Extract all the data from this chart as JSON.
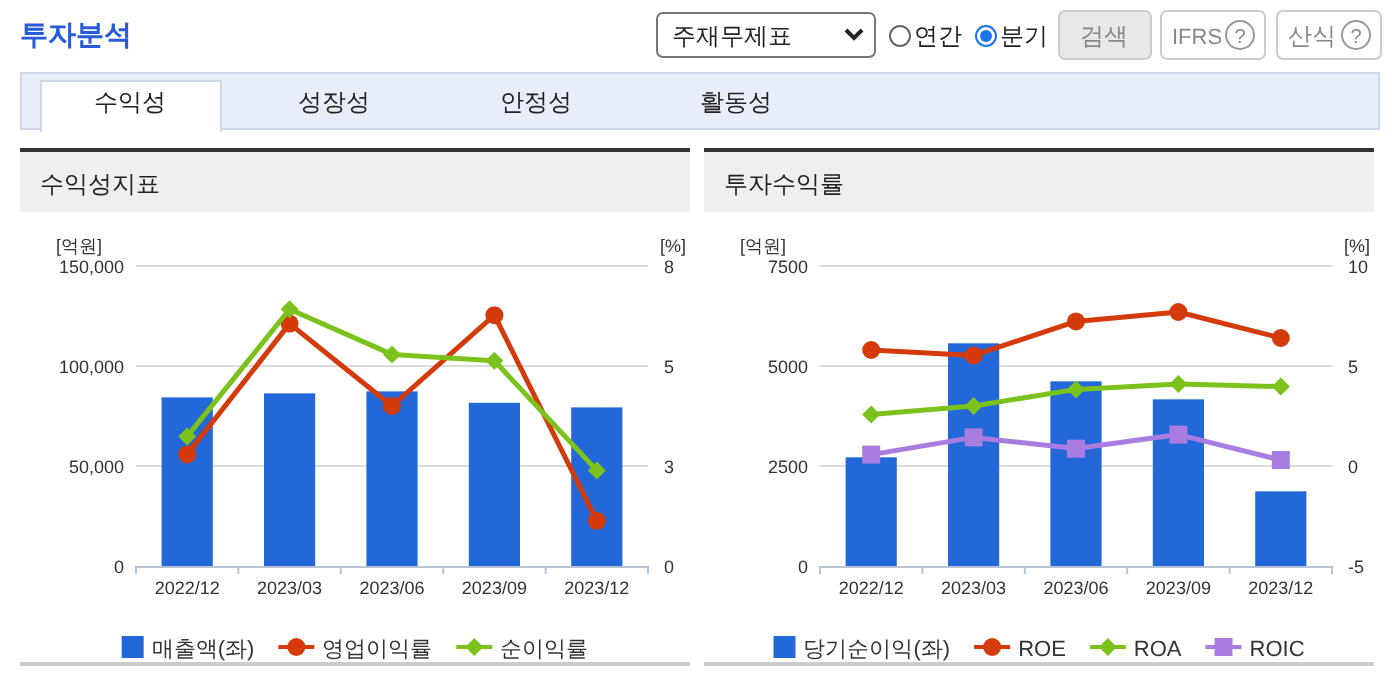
{
  "chart_data": [
    {
      "type": "other",
      "title": "투자분석",
      "annotations": [
        "주재무제표",
        "연간",
        "분기",
        "검색",
        "IFRS",
        "?",
        "산식",
        "?",
        "수익성",
        "성장성",
        "안정성",
        "활동성"
      ]
    },
    {
      "type": "bar",
      "title": "수익성지표",
      "ylabel": "[억원]",
      "y2label": "[%]",
      "categories": [
        "2022/12",
        "2023/03",
        "2023/06",
        "2023/09",
        "2023/12"
      ],
      "ylim": [
        0,
        150000
      ],
      "yticks": [
        0,
        {
          "value": 50000,
          "label": "50,000"
        },
        {
          "value": 100000,
          "label": "100,000"
        },
        {
          "value": 150000,
          "label": "150,000"
        }
      ],
      "y2lim": [
        0,
        7.5
      ],
      "y2ticks": [
        0,
        {
          "value": 2.5,
          "label": "3"
        },
        5,
        {
          "value": 7.5,
          "label": "8"
        }
      ],
      "grid": "y",
      "legend": "bottom",
      "series": [
        {
          "name": "매출액(좌)",
          "type": "bar",
          "color": "#2268d8",
          "values": [
            84300,
            86300,
            87300,
            81600,
            79300
          ]
        },
        {
          "name": "영업이익률",
          "type": "line",
          "axis": "y2",
          "marker": "circle",
          "color": "#d43a0a",
          "values": [
            2.79,
            6.06,
            4.0,
            6.27,
            1.13
          ]
        },
        {
          "name": "순이익률",
          "type": "line",
          "axis": "y2",
          "marker": "diamond",
          "color": "#7cc21d",
          "values": [
            3.24,
            6.42,
            5.29,
            5.13,
            2.39
          ]
        }
      ]
    },
    {
      "type": "bar",
      "title": "투자수익률",
      "ylabel": "[억원]",
      "y2label": "[%]",
      "categories": [
        "2022/12",
        "2023/03",
        "2023/06",
        "2023/09",
        "2023/12"
      ],
      "ylim": [
        0,
        7500
      ],
      "yticks": [
        0,
        2500,
        5000,
        7500
      ],
      "y2lim": [
        -5,
        10
      ],
      "y2ticks": [
        -5,
        0,
        5,
        10
      ],
      "grid": "y",
      "legend": "bottom",
      "series": [
        {
          "name": "당기순이익(좌)",
          "type": "bar",
          "color": "#2268d8",
          "values": [
            2717,
            5567,
            4617,
            4167,
            1867
          ]
        },
        {
          "name": "ROE",
          "type": "line",
          "axis": "y2",
          "marker": "circle",
          "color": "#d43a0a",
          "values": [
            5.8,
            5.53,
            7.23,
            7.7,
            6.4
          ]
        },
        {
          "name": "ROA",
          "type": "line",
          "axis": "y2",
          "marker": "diamond",
          "color": "#7cc21d",
          "values": [
            2.57,
            3.0,
            3.83,
            4.1,
            3.97
          ]
        },
        {
          "name": "ROIC",
          "type": "line",
          "axis": "y2",
          "marker": "square",
          "color": "#a97ce0",
          "values": [
            0.57,
            1.43,
            0.87,
            1.57,
            0.3
          ]
        }
      ]
    }
  ]
}
